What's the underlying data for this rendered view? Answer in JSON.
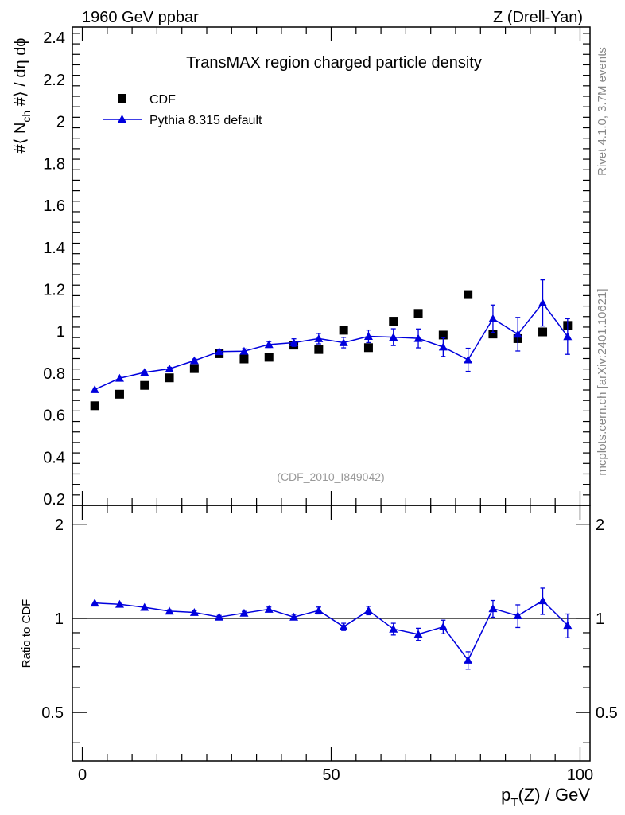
{
  "header": {
    "energy_label": "1960 GeV ppbar",
    "process_label": "Z (Drell-Yan)",
    "rivet_label": "Rivet 4.1.0,  3.7M events",
    "mcplots_label": "mcplots.cern.ch [arXiv:2401.10621]",
    "analysis_id": "(CDF_2010_I849042)"
  },
  "chart_data": {
    "type": "scatter",
    "title": "TransMAX region charged particle density",
    "xlabel": "p_T(Z) / GeV",
    "ylabel": "#⟨ N_ch #⟩ / dη dϕ",
    "ratio_ylabel": "Ratio to CDF",
    "xlim": [
      -2,
      102
    ],
    "ylim": [
      0.17,
      2.45
    ],
    "ratio_ylim": [
      0.35,
      2.3
    ],
    "x_ticks": [
      "0",
      "50",
      "100"
    ],
    "y_ticks": [
      "0.2",
      "0.4",
      "0.6",
      "0.8",
      "1",
      "1.2",
      "1.4",
      "1.6",
      "1.8",
      "2",
      "2.2",
      "2.4"
    ],
    "ratio_ticks": [
      "0.5",
      "1",
      "2"
    ],
    "legend_position": "top-left",
    "x": [
      2.5,
      7.5,
      12.5,
      17.5,
      22.5,
      27.5,
      32.5,
      37.5,
      42.5,
      47.5,
      52.5,
      57.5,
      62.5,
      67.5,
      72.5,
      77.5,
      82.5,
      87.5,
      92.5,
      97.5
    ],
    "series": [
      {
        "name": "CDF",
        "marker": "square",
        "color": "#000000",
        "values": [
          0.645,
          0.7,
          0.742,
          0.778,
          0.822,
          0.893,
          0.868,
          0.876,
          0.934,
          0.913,
          1.005,
          0.922,
          1.048,
          1.085,
          0.982,
          1.175,
          0.987,
          0.965,
          0.997,
          1.028
        ]
      },
      {
        "name": "Pythia 8.315 default",
        "marker": "triangle",
        "color": "#0000dd",
        "values": [
          0.722,
          0.776,
          0.804,
          0.821,
          0.86,
          0.903,
          0.905,
          0.937,
          0.946,
          0.965,
          0.946,
          0.976,
          0.972,
          0.966,
          0.925,
          0.864,
          1.06,
          0.986,
          1.135,
          0.975
        ],
        "errors": [
          0.005,
          0.005,
          0.006,
          0.007,
          0.008,
          0.01,
          0.011,
          0.014,
          0.018,
          0.025,
          0.025,
          0.03,
          0.04,
          0.045,
          0.045,
          0.055,
          0.065,
          0.08,
          0.11,
          0.085
        ]
      }
    ],
    "ratio": {
      "name": "Pythia 8.315 default / CDF",
      "values": [
        1.12,
        1.11,
        1.085,
        1.055,
        1.045,
        1.01,
        1.04,
        1.07,
        1.01,
        1.06,
        0.94,
        1.06,
        0.925,
        0.89,
        0.94,
        0.735,
        1.075,
        1.02,
        1.14,
        0.95
      ],
      "errors": [
        0.008,
        0.008,
        0.009,
        0.01,
        0.012,
        0.012,
        0.013,
        0.017,
        0.02,
        0.027,
        0.025,
        0.033,
        0.04,
        0.04,
        0.047,
        0.047,
        0.066,
        0.085,
        0.11,
        0.083
      ]
    }
  }
}
